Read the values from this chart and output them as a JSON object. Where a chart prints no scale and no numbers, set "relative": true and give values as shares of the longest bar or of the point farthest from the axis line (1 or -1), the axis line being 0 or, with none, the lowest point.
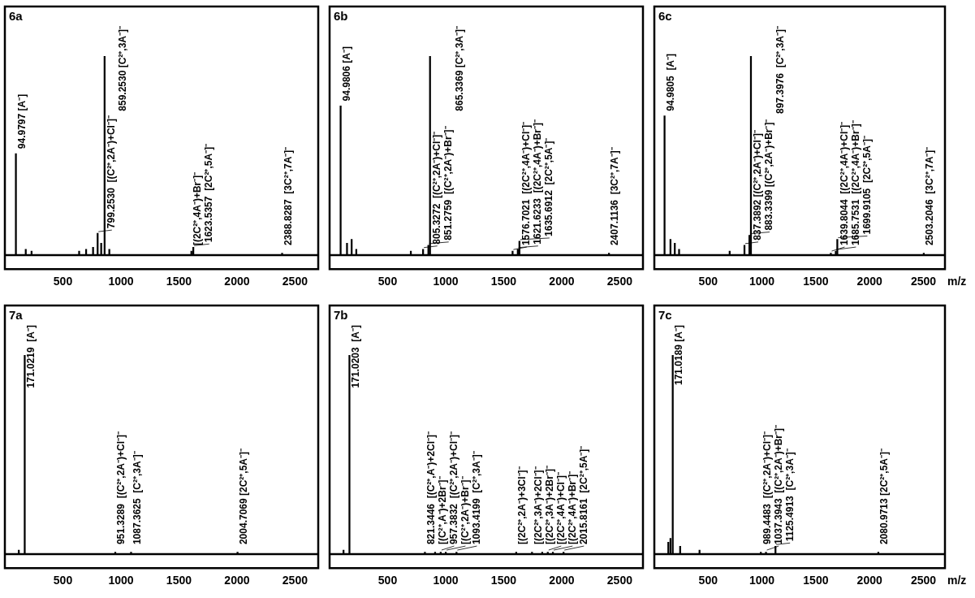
{
  "chart_data": [
    {
      "type": "bar",
      "title": "6a",
      "x": [
        94.9797,
        180,
        230,
        640,
        700,
        760,
        799.253,
        830,
        859.253,
        900,
        1607,
        1623.5357,
        2388.8287
      ],
      "values": [
        0.51,
        0.03,
        0.02,
        0.02,
        0.03,
        0.04,
        0.11,
        0.06,
        1,
        0.03,
        0.02,
        0.04,
        0.01
      ],
      "color": "#000000",
      "relative": true,
      "xlim": [
        0,
        2700
      ],
      "xticks": [
        500,
        1000,
        1500,
        2000,
        2500
      ],
      "annotations": [
        {
          "text": "94.9797 [A⁻]",
          "x": 94.9797,
          "y": 0.51
        },
        {
          "text": "799.2530  [(C²⁺,2A⁻)+Cl⁻]⁻",
          "x": 799.253,
          "y": 0.11
        },
        {
          "text": "859.2530 [C²⁺,3A⁻]⁻",
          "x": 859.253,
          "y": 1
        },
        {
          "text": "[(2C²⁺,4A⁻)+Br⁻]⁻",
          "x": 1607,
          "y": 0.02
        },
        {
          "text": "1623.5357  [2C²⁺,5A⁻]⁻",
          "x": 1623.5357,
          "y": 0.04
        },
        {
          "text": "2388.8287  [3C²⁺,7A⁻]⁻",
          "x": 2388.8287,
          "y": 0.01
        }
      ]
    },
    {
      "type": "bar",
      "title": "6b",
      "x": [
        94.9806,
        150,
        190,
        230,
        700,
        805.3272,
        851.2759,
        865.3369,
        1576.7021,
        1621.6233,
        1635.6912,
        2407.1136
      ],
      "values": [
        0.75,
        0.06,
        0.08,
        0.03,
        0.02,
        0.03,
        0.05,
        1,
        0.02,
        0.03,
        0.07,
        0.01
      ],
      "color": "#000000",
      "relative": true,
      "xlim": [
        0,
        2700
      ],
      "xticks": [
        500,
        1000,
        1500,
        2000,
        2500
      ],
      "annotations": [
        {
          "text": "94.9806 [A⁻]",
          "x": 94.9806,
          "y": 0.75
        },
        {
          "text": "805.3272  [(C²⁺,2A⁻)+Cl⁻]⁻",
          "x": 805.3272,
          "y": 0.03
        },
        {
          "text": "851.2759  [(C²⁺,2A⁻)+Br⁻]⁻",
          "x": 851.2759,
          "y": 0.05
        },
        {
          "text": "865.3369 [C²⁺,3A⁻]⁻",
          "x": 865.3369,
          "y": 1
        },
        {
          "text": "1576.7021  [(2C²⁺,4A⁻)+Cl⁻]⁻",
          "x": 1576.7021,
          "y": 0.02
        },
        {
          "text": "1621.6233  [(2C²⁺,4A⁻)+Br⁻]⁻",
          "x": 1621.6233,
          "y": 0.03
        },
        {
          "text": "1635.6912  [2C²⁺,5A⁻]⁻",
          "x": 1635.6912,
          "y": 0.07
        },
        {
          "text": "2407.1136  [3C²⁺,7A⁻]⁻",
          "x": 2407.1136,
          "y": 0.01
        }
      ]
    },
    {
      "type": "bar",
      "title": "6c",
      "xlabel": "m/z",
      "x": [
        94.9805,
        150,
        190,
        230,
        700,
        837.3892,
        883.3399,
        897.3976,
        1639.8044,
        1685.7531,
        1699.9105,
        2503.2046
      ],
      "values": [
        0.7,
        0.08,
        0.06,
        0.03,
        0.02,
        0.05,
        0.1,
        1,
        0.01,
        0.02,
        0.08,
        0.01
      ],
      "color": "#000000",
      "relative": true,
      "xlim": [
        0,
        2700
      ],
      "xticks": [
        500,
        1000,
        1500,
        2000,
        2500
      ],
      "annotations": [
        {
          "text": "94.9805  [A⁻]",
          "x": 94.9805,
          "y": 0.7
        },
        {
          "text": "837.3892 [(C²⁺,2A⁻)+Cl⁻]⁻",
          "x": 837.3892,
          "y": 0.05
        },
        {
          "text": "883.3399 [(C²⁺,2A⁻)+Br⁻]⁻",
          "x": 883.3399,
          "y": 0.1
        },
        {
          "text": "897.3976  [C²⁺,3A⁻]⁻",
          "x": 897.3976,
          "y": 1
        },
        {
          "text": "1639.8044  [(2C²⁺,4A⁻)+Cl⁻]⁻",
          "x": 1639.8044,
          "y": 0.01
        },
        {
          "text": "1685.7531  [(2C²⁺,4A⁻)+Br⁻]⁻",
          "x": 1685.7531,
          "y": 0.02
        },
        {
          "text": "1699.9105  [2C²⁺,5A⁻]⁻",
          "x": 1699.9105,
          "y": 0.08
        },
        {
          "text": "2503.2046  [3C²⁺,7A⁻]⁻",
          "x": 2503.2046,
          "y": 0.01
        }
      ]
    },
    {
      "type": "bar",
      "title": "7a",
      "x": [
        120,
        171.0219,
        951.3289,
        1087.3625,
        2004.7069
      ],
      "values": [
        0.02,
        1,
        0.01,
        0.01,
        0.01
      ],
      "color": "#000000",
      "relative": true,
      "xlim": [
        0,
        2700
      ],
      "xticks": [
        500,
        1000,
        1500,
        2000,
        2500
      ],
      "annotations": [
        {
          "text": "171.0219  [A⁻]",
          "x": 171.0219,
          "y": 1
        },
        {
          "text": "951.3289  [(C²⁺,2A⁻)+Cl⁻]⁻",
          "x": 951.3289,
          "y": 0.01
        },
        {
          "text": "1087.3625  [C²⁺,3A⁻]⁻",
          "x": 1087.3625,
          "y": 0.01
        },
        {
          "text": "2004.7069 [2C²⁺,5A⁻]⁻",
          "x": 2004.7069,
          "y": 0.01
        }
      ]
    },
    {
      "type": "bar",
      "title": "7b",
      "x": [
        120,
        171.0203,
        821.3446,
        909,
        957.3832,
        1001,
        1093.4199,
        1608,
        1744,
        1832,
        1880,
        1924,
        2015.8161
      ],
      "values": [
        0.02,
        1,
        0.01,
        0.01,
        0.01,
        0.01,
        0.01,
        0.01,
        0.01,
        0.01,
        0.01,
        0.01,
        0.01
      ],
      "color": "#000000",
      "relative": true,
      "xlim": [
        0,
        2700
      ],
      "xticks": [
        500,
        1000,
        1500,
        2000,
        2500
      ],
      "annotations": [
        {
          "text": "171.0203  [A⁻]",
          "x": 171.0203,
          "y": 1
        },
        {
          "text": "821.3446  [(C²⁺,A⁻)+2Cl⁻]⁻",
          "x": 821.3446,
          "y": 0.01
        },
        {
          "text": "[(C²⁺,A⁻)+2Br⁻]⁻",
          "x": 909,
          "y": 0.01
        },
        {
          "text": "957.3832  [(C²⁺,2A⁻)+Cl⁻]⁻",
          "x": 957.3832,
          "y": 0.01
        },
        {
          "text": "[(C²⁺,2A⁻)+Br⁻]⁻",
          "x": 1001,
          "y": 0.01
        },
        {
          "text": "1093.4199  [C²⁺,3A⁻]⁻",
          "x": 1093.4199,
          "y": 0.01
        },
        {
          "text": "[(2C²⁺,2A⁻)+3Cl⁻]⁻",
          "x": 1608,
          "y": 0.01
        },
        {
          "text": "[(2C²⁺,3A⁻)+2Cl⁻]⁻",
          "x": 1744,
          "y": 0.01
        },
        {
          "text": "[(2C²⁺,3A⁻)+2Br⁻]⁻",
          "x": 1832,
          "y": 0.01
        },
        {
          "text": "[(2C²⁺,4A⁻)+Cl⁻]⁻",
          "x": 1880,
          "y": 0.01
        },
        {
          "text": "[(2C²⁺,4A⁻)+Br⁻]⁻",
          "x": 1924,
          "y": 0.01
        },
        {
          "text": "2015.8161  [2C²⁺,5A⁻]⁻",
          "x": 2015.8161,
          "y": 0.01
        }
      ]
    },
    {
      "type": "bar",
      "title": "7c",
      "xlabel": "m/z",
      "x": [
        130,
        150,
        171.0189,
        240,
        420,
        989.4483,
        1037.3943,
        1125.4913,
        2080.9713
      ],
      "values": [
        0.06,
        0.08,
        1,
        0.04,
        0.02,
        0.01,
        0.01,
        0.04,
        0.01
      ],
      "color": "#000000",
      "relative": true,
      "xlim": [
        0,
        2700
      ],
      "xticks": [
        500,
        1000,
        1500,
        2000,
        2500
      ],
      "annotations": [
        {
          "text": "171.0189 [A⁻]",
          "x": 171.0189,
          "y": 1
        },
        {
          "text": "989.4483  [(C²⁺,2A⁻)+Cl⁻]⁻",
          "x": 989.4483,
          "y": 0.01
        },
        {
          "text": "1037.3943  [(C²⁺,2A⁻)+Br⁻]⁻",
          "x": 1037.3943,
          "y": 0.01
        },
        {
          "text": "1125.4913  [C²⁺,3A⁻]⁻",
          "x": 1125.4913,
          "y": 0.04
        },
        {
          "text": "2080.9713 [2C²⁺,5A⁻]⁻",
          "x": 2080.9713,
          "y": 0.01
        }
      ]
    }
  ]
}
